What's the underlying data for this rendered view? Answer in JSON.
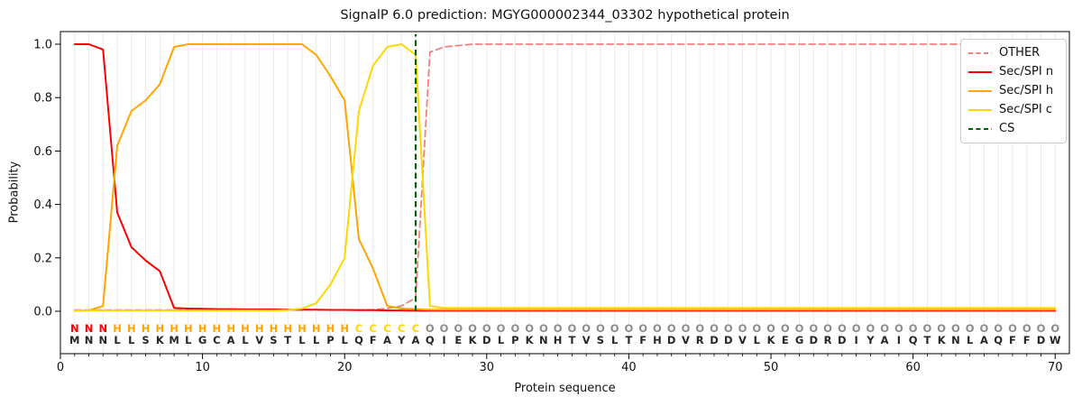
{
  "figure": {
    "title": "SignalP 6.0 prediction: MGYG000002344_03302 hypothetical protein",
    "xlabel": "Protein sequence",
    "ylabel": "Probability"
  },
  "chart_data": {
    "type": "line",
    "title": "SignalP 6.0 prediction: MGYG000002344_03302 hypothetical protein",
    "xlabel": "Protein sequence",
    "ylabel": "Probability",
    "xlim": [
      0,
      71
    ],
    "ylim": [
      -0.16,
      1.05
    ],
    "x_ticks": [
      0,
      10,
      20,
      30,
      40,
      50,
      60,
      70
    ],
    "y_ticks": [
      "0.0",
      "0.2",
      "0.4",
      "0.6",
      "0.8",
      "1.0"
    ],
    "grid": "vertical line per residue, light grey",
    "legend_position": "upper right",
    "x": [
      1,
      2,
      3,
      4,
      5,
      6,
      7,
      8,
      9,
      10,
      11,
      12,
      13,
      14,
      15,
      16,
      17,
      18,
      19,
      20,
      21,
      22,
      23,
      24,
      25,
      26,
      27,
      28,
      29,
      30,
      31,
      32,
      33,
      34,
      35,
      36,
      37,
      38,
      39,
      40,
      41,
      42,
      43,
      44,
      45,
      46,
      47,
      48,
      49,
      50,
      51,
      52,
      53,
      54,
      55,
      56,
      57,
      58,
      59,
      60,
      61,
      62,
      63,
      64,
      65,
      66,
      67,
      68,
      69,
      70
    ],
    "series": [
      {
        "name": "OTHER",
        "color": "#f08080",
        "style": "dashed",
        "values": [
          0.005,
          0.005,
          0.005,
          0.005,
          0.005,
          0.005,
          0.005,
          0.005,
          0.005,
          0.005,
          0.005,
          0.005,
          0.005,
          0.005,
          0.005,
          0.005,
          0.005,
          0.005,
          0.005,
          0.005,
          0.005,
          0.006,
          0.01,
          0.02,
          0.05,
          0.97,
          0.99,
          0.995,
          1.0,
          1.0,
          1.0,
          1.0,
          1.0,
          1.0,
          1.0,
          1.0,
          1.0,
          1.0,
          1.0,
          1.0,
          1.0,
          1.0,
          1.0,
          1.0,
          1.0,
          1.0,
          1.0,
          1.0,
          1.0,
          1.0,
          1.0,
          1.0,
          1.0,
          1.0,
          1.0,
          1.0,
          1.0,
          1.0,
          1.0,
          1.0,
          1.0,
          1.0,
          1.0,
          1.0,
          1.0,
          1.0,
          1.0,
          1.0,
          1.0,
          1.0
        ]
      },
      {
        "name": "Sec/SPI n",
        "color": "#ff0000",
        "style": "solid",
        "values": [
          1.0,
          1.0,
          0.98,
          0.37,
          0.24,
          0.19,
          0.15,
          0.012,
          0.01,
          0.009,
          0.008,
          0.008,
          0.007,
          0.007,
          0.007,
          0.006,
          0.006,
          0.006,
          0.005,
          0.005,
          0.004,
          0.004,
          0.003,
          0.003,
          0.002,
          0.002,
          0.002,
          0.002,
          0.002,
          0.002,
          0.002,
          0.002,
          0.002,
          0.002,
          0.002,
          0.002,
          0.002,
          0.002,
          0.002,
          0.002,
          0.002,
          0.002,
          0.002,
          0.002,
          0.002,
          0.002,
          0.002,
          0.002,
          0.002,
          0.002,
          0.002,
          0.002,
          0.002,
          0.002,
          0.002,
          0.002,
          0.002,
          0.002,
          0.002,
          0.002,
          0.002,
          0.002,
          0.002,
          0.002,
          0.002,
          0.002,
          0.002,
          0.002,
          0.002,
          0.002
        ]
      },
      {
        "name": "Sec/SPI h",
        "color": "#ffa500",
        "style": "solid",
        "values": [
          0.002,
          0.003,
          0.02,
          0.62,
          0.75,
          0.79,
          0.85,
          0.99,
          1.0,
          1.0,
          1.0,
          1.0,
          1.0,
          1.0,
          1.0,
          1.0,
          1.0,
          0.96,
          0.88,
          0.79,
          0.27,
          0.16,
          0.02,
          0.01,
          0.008,
          0.006,
          0.006,
          0.006,
          0.006,
          0.006,
          0.006,
          0.006,
          0.006,
          0.006,
          0.006,
          0.006,
          0.006,
          0.006,
          0.006,
          0.006,
          0.006,
          0.006,
          0.006,
          0.006,
          0.006,
          0.006,
          0.006,
          0.006,
          0.006,
          0.006,
          0.006,
          0.006,
          0.006,
          0.006,
          0.006,
          0.006,
          0.006,
          0.006,
          0.006,
          0.006,
          0.006,
          0.006,
          0.006,
          0.006,
          0.006,
          0.006,
          0.006,
          0.006,
          0.006,
          0.006
        ]
      },
      {
        "name": "Sec/SPI c",
        "color": "#ffd700",
        "style": "solid",
        "values": [
          0.003,
          0.003,
          0.003,
          0.003,
          0.003,
          0.003,
          0.003,
          0.003,
          0.003,
          0.003,
          0.003,
          0.003,
          0.003,
          0.003,
          0.003,
          0.004,
          0.01,
          0.03,
          0.1,
          0.2,
          0.75,
          0.92,
          0.99,
          1.0,
          0.96,
          0.02,
          0.012,
          0.012,
          0.012,
          0.012,
          0.012,
          0.012,
          0.012,
          0.012,
          0.012,
          0.012,
          0.012,
          0.012,
          0.012,
          0.012,
          0.012,
          0.012,
          0.012,
          0.012,
          0.012,
          0.012,
          0.012,
          0.012,
          0.012,
          0.012,
          0.012,
          0.012,
          0.012,
          0.012,
          0.012,
          0.012,
          0.012,
          0.012,
          0.012,
          0.012,
          0.012,
          0.012,
          0.012,
          0.012,
          0.012,
          0.012,
          0.012,
          0.012,
          0.012,
          0.012
        ]
      }
    ],
    "cs_marker": {
      "label": "CS",
      "position": 25,
      "color": "#006400",
      "style": "dashed"
    },
    "sequence": "MNNLLSKMLGCALVSTLLPLQFAYAQIEKDLPKNHTVSLTFHDVRDDVLKEGDRDIYAIQTKNLAQFFDW",
    "regions": "NNNHHHHHHHHHHHHHHHHHCCCCCOOOOOOOOOOOOOOOOOOOOOOOOOOOOOOOOOOOOOOOOOOOOO",
    "region_colors": {
      "N": "#ff0000",
      "H": "#ffa500",
      "C": "#ffd700",
      "O": "#8c8c8c"
    },
    "sequence_color": "#262626"
  }
}
